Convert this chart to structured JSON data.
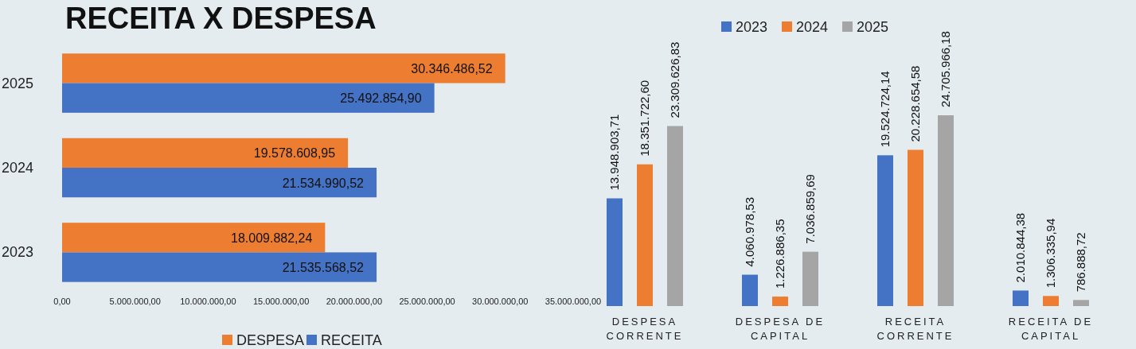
{
  "chart_data": [
    {
      "type": "bar",
      "orientation": "horizontal",
      "title": "RECEITA X DESPESA",
      "categories": [
        "2025",
        "2024",
        "2023"
      ],
      "series": [
        {
          "name": "DESPESA",
          "color": "#ed7d31",
          "values": [
            30346486.52,
            19578608.95,
            18009882.24
          ],
          "value_labels": [
            "30.346.486,52",
            "19.578.608,95",
            "18.009.882,24"
          ]
        },
        {
          "name": "RECEITA",
          "color": "#4472c4",
          "values": [
            25492854.9,
            21534990.52,
            21535568.52
          ],
          "value_labels": [
            "25.492.854,90",
            "21.534.990,52",
            "21.535.568,52"
          ]
        }
      ],
      "xlim": [
        0,
        35000000
      ],
      "xticks": [
        {
          "value": 0,
          "label": "0,00"
        },
        {
          "value": 5000000,
          "label": "5.000.000,00"
        },
        {
          "value": 10000000,
          "label": "10.000.000,00"
        },
        {
          "value": 15000000,
          "label": "15.000.000,00"
        },
        {
          "value": 20000000,
          "label": "20.000.000,00"
        },
        {
          "value": 25000000,
          "label": "25.000.000,00"
        },
        {
          "value": 30000000,
          "label": "30.000.000,00"
        },
        {
          "value": 35000000,
          "label": "35.000.000,00"
        }
      ],
      "legend": "bottom"
    },
    {
      "type": "bar",
      "categories": [
        "DESPESA CORRENTE",
        "DESPESA DE CAPITAL",
        "RECEITA CORRENTE",
        "RECEITA DE CAPITAL"
      ],
      "series": [
        {
          "name": "2023",
          "color": "#4472c4",
          "values": [
            13948903.71,
            4060978.53,
            19524724.14,
            2010844.38
          ],
          "value_labels": [
            "13.948.903,71",
            "4.060.978,53",
            "19.524.724,14",
            "2.010.844,38"
          ]
        },
        {
          "name": "2024",
          "color": "#ed7d31",
          "values": [
            18351722.6,
            1226886.35,
            20228654.58,
            1306335.94
          ],
          "value_labels": [
            "18.351.722,60",
            "1.226.886,35",
            "20.228.654,58",
            "1.306.335,94"
          ]
        },
        {
          "name": "2025",
          "color": "#a5a5a5",
          "values": [
            23309626.83,
            7036859.69,
            24705966.18,
            786888.72
          ],
          "value_labels": [
            "23.309.626,83",
            "7.036.859,69",
            "24.705.966,18",
            "786.888,72"
          ]
        }
      ],
      "legend": "top"
    }
  ]
}
